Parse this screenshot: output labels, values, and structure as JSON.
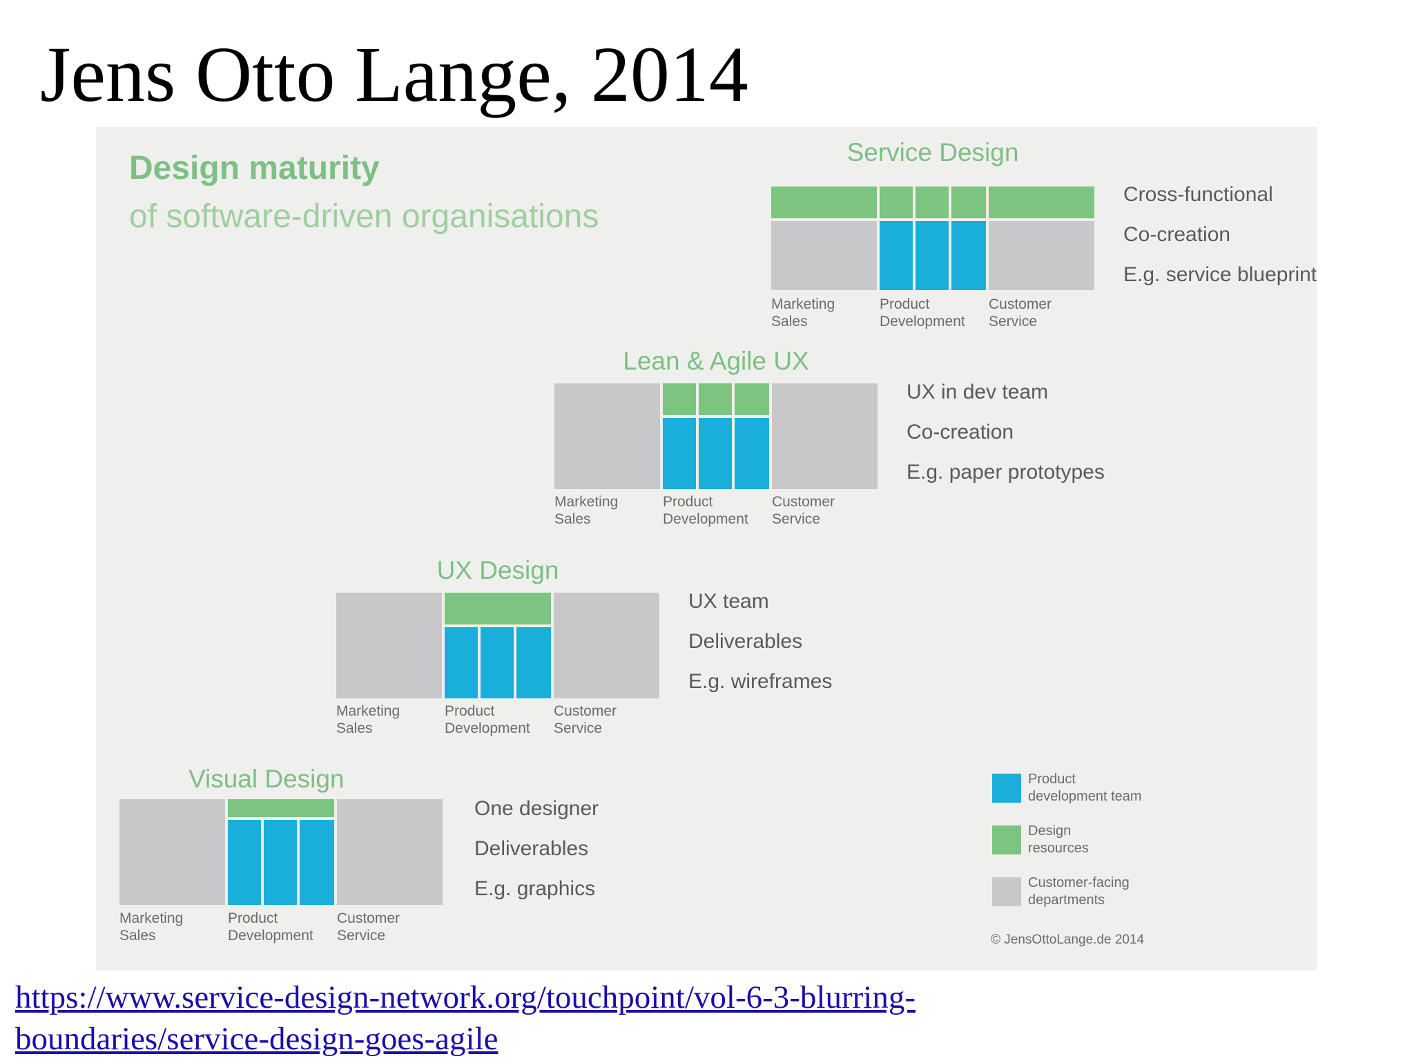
{
  "slide": {
    "title": "Jens Otto Lange, 2014",
    "link_line1": "https://www.service-design-network.org/touchpoint/vol-6-3-blurring-",
    "link_line2": "boundaries/service-design-goes-agile"
  },
  "figure": {
    "heading": "Design maturity",
    "subheading": "of software-driven organisations",
    "levels": [
      {
        "title": "Service Design",
        "descriptors": [
          "Cross-functional",
          "Co-creation",
          "E.g. service blueprint"
        ],
        "departments": [
          "Marketing\nSales",
          "Product\nDevelopment",
          "Customer\nService"
        ],
        "design_span": "all-departments"
      },
      {
        "title": "Lean & Agile UX",
        "descriptors": [
          "UX in dev team",
          "Co-creation",
          "E.g. paper prototypes"
        ],
        "departments": [
          "Marketing\nSales",
          "Product\nDevelopment",
          "Customer\nService"
        ],
        "design_span": "each-dev-team"
      },
      {
        "title": "UX Design",
        "descriptors": [
          "UX team",
          "Deliverables",
          "E.g. wireframes"
        ],
        "departments": [
          "Marketing\nSales",
          "Product\nDevelopment",
          "Customer\nService"
        ],
        "design_span": "single-team-above-dev"
      },
      {
        "title": "Visual Design",
        "descriptors": [
          "One designer",
          "Deliverables",
          "E.g. graphics"
        ],
        "departments": [
          "Marketing\nSales",
          "Product\nDevelopment",
          "Customer\nService"
        ],
        "design_span": "thin-strip-above-dev"
      }
    ],
    "legend": [
      {
        "label": "Product\ndevelopment team",
        "color": "#1aafdb"
      },
      {
        "label": "Design\nresources",
        "color": "#7cc47f"
      },
      {
        "label": "Customer-facing\ndepartments",
        "color": "#c8c8ca"
      }
    ],
    "copyright": "© JensOttoLange.de 2014",
    "colors": {
      "title_green": "#7dbf84",
      "design_green": "#7cc47f",
      "dev_blue": "#1aafdb",
      "dept_gray": "#c8c8ca",
      "panel_bg": "#efefed"
    }
  }
}
